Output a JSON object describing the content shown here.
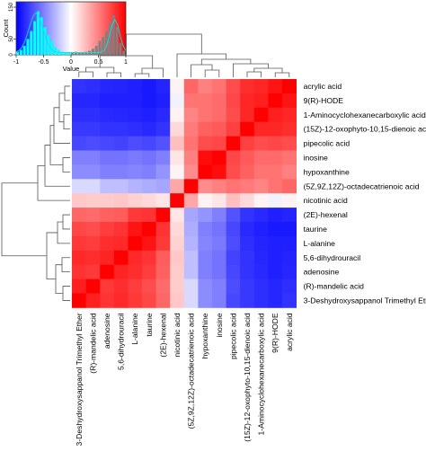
{
  "chart_data": {
    "type": "heatmap",
    "labels": [
      "3-Deshydroxysappanol Trimethyl Ether",
      "(R)-mandelic acid",
      "adenosine",
      "5,6-dihydrouracil",
      "L-alanine",
      "taurine",
      "(2E)-hexenal",
      "nicotinic acid",
      "(5Z,9Z,12Z)-octadecatrienoic acid",
      "hypoxanthine",
      "inosine",
      "pipecolic acid",
      "(15Z)-12-oxophyto-10,15-dienoic acid",
      "1-Aminocyclohexanecarboxylic acid",
      "9(R)-HODE",
      "acrylic acid"
    ],
    "values": [
      [
        1.0,
        0.88,
        0.8,
        0.84,
        0.78,
        0.72,
        0.6,
        0.22,
        -0.15,
        -0.45,
        -0.5,
        -0.72,
        -0.78,
        -0.82,
        -0.85,
        -0.8
      ],
      [
        0.88,
        1.0,
        0.78,
        0.82,
        0.76,
        0.7,
        0.58,
        0.2,
        -0.15,
        -0.45,
        -0.5,
        -0.7,
        -0.78,
        -0.82,
        -0.85,
        -0.82
      ],
      [
        0.8,
        0.78,
        1.0,
        0.86,
        0.82,
        0.76,
        0.62,
        0.2,
        -0.25,
        -0.5,
        -0.55,
        -0.72,
        -0.8,
        -0.84,
        -0.88,
        -0.85
      ],
      [
        0.84,
        0.82,
        0.86,
        1.0,
        0.84,
        0.8,
        0.64,
        0.22,
        -0.25,
        -0.5,
        -0.55,
        -0.74,
        -0.8,
        -0.85,
        -0.88,
        -0.86
      ],
      [
        0.78,
        0.76,
        0.82,
        0.84,
        1.0,
        0.92,
        0.78,
        0.18,
        -0.3,
        -0.48,
        -0.52,
        -0.7,
        -0.82,
        -0.86,
        -0.88,
        -0.88
      ],
      [
        0.72,
        0.7,
        0.76,
        0.8,
        0.92,
        1.0,
        0.8,
        0.15,
        -0.32,
        -0.5,
        -0.55,
        -0.72,
        -0.84,
        -0.88,
        -0.9,
        -0.9
      ],
      [
        0.6,
        0.58,
        0.62,
        0.64,
        0.78,
        0.8,
        1.0,
        0.1,
        -0.35,
        -0.42,
        -0.5,
        -0.68,
        -0.8,
        -0.84,
        -0.88,
        -0.86
      ],
      [
        0.22,
        0.2,
        0.2,
        0.22,
        0.18,
        0.15,
        0.1,
        1.0,
        0.35,
        0.05,
        0.1,
        0.25,
        0.15,
        0.05,
        -0.05,
        0.05
      ],
      [
        -0.15,
        -0.15,
        -0.25,
        -0.25,
        -0.3,
        -0.32,
        -0.35,
        0.35,
        1.0,
        0.45,
        0.5,
        0.55,
        0.52,
        0.48,
        0.55,
        0.6
      ],
      [
        -0.45,
        -0.45,
        -0.5,
        -0.5,
        -0.48,
        -0.5,
        -0.42,
        0.05,
        0.45,
        1.0,
        0.95,
        0.7,
        0.62,
        0.55,
        0.55,
        0.5
      ],
      [
        -0.5,
        -0.5,
        -0.55,
        -0.55,
        -0.52,
        -0.55,
        -0.5,
        0.1,
        0.5,
        0.95,
        1.0,
        0.72,
        0.65,
        0.58,
        0.58,
        0.55
      ],
      [
        -0.72,
        -0.7,
        -0.72,
        -0.74,
        -0.7,
        -0.72,
        -0.68,
        0.25,
        0.55,
        0.7,
        0.72,
        1.0,
        0.75,
        0.7,
        0.72,
        0.7
      ],
      [
        -0.78,
        -0.78,
        -0.8,
        -0.8,
        -0.82,
        -0.84,
        -0.8,
        0.15,
        0.52,
        0.62,
        0.65,
        0.75,
        1.0,
        0.85,
        0.85,
        0.82
      ],
      [
        -0.82,
        -0.82,
        -0.84,
        -0.85,
        -0.86,
        -0.88,
        -0.84,
        0.05,
        0.48,
        0.55,
        0.58,
        0.7,
        0.85,
        1.0,
        0.88,
        0.85
      ],
      [
        -0.85,
        -0.85,
        -0.88,
        -0.88,
        -0.88,
        -0.9,
        -0.88,
        -0.05,
        0.55,
        0.55,
        0.58,
        0.72,
        0.85,
        0.88,
        1.0,
        0.92
      ],
      [
        -0.8,
        -0.82,
        -0.85,
        -0.86,
        -0.88,
        -0.9,
        -0.86,
        0.05,
        0.6,
        0.5,
        0.55,
        0.7,
        0.82,
        0.85,
        0.92,
        1.0
      ]
    ],
    "color_scale": {
      "low": "#0000ff",
      "mid": "#ffffff",
      "high": "#ff0000",
      "range": [
        -1,
        1
      ]
    },
    "legend": {
      "title": "",
      "xlabel": "Value",
      "ylabel": "Count",
      "x_ticks": [
        "-1",
        "-0.5",
        "0",
        "0.5",
        "1"
      ],
      "y_ticks": [
        "0",
        "50",
        "150"
      ],
      "histogram_colors": {
        "density": "#00ffff",
        "hist": "#808080"
      },
      "placement": "top-left"
    },
    "dendrograms": {
      "rows": true,
      "columns": true
    },
    "title": "",
    "xlabel": "",
    "ylabel": ""
  }
}
